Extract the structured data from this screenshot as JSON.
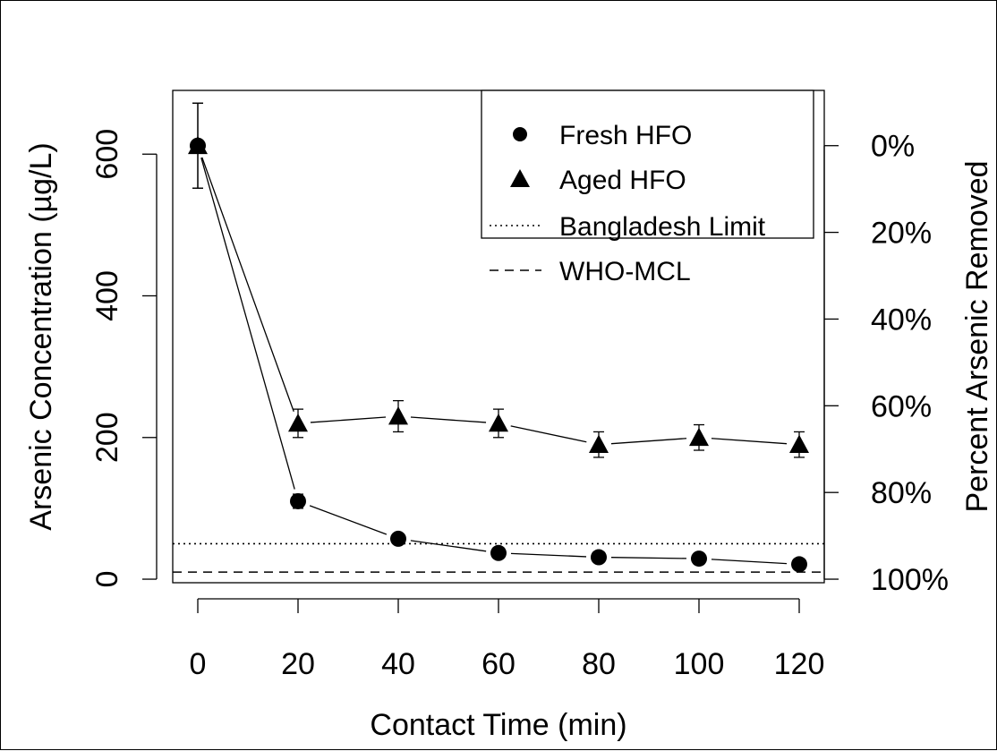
{
  "chart_data": {
    "type": "scatter",
    "xlabel": "Contact Time (min)",
    "ylabel_left": "Arsenic Concentration (µg/L)",
    "ylabel_right": "Percent Arsenic Removed",
    "xlim": [
      -5,
      125
    ],
    "ylim": [
      -5,
      690
    ],
    "x_ticks": [
      0,
      20,
      40,
      60,
      80,
      100,
      120
    ],
    "x_tick_labels": [
      "0",
      "20",
      "40",
      "60",
      "80",
      "100",
      "120"
    ],
    "y_ticks": [
      0,
      200,
      400,
      600
    ],
    "y_tick_labels": [
      "0",
      "200",
      "400",
      "600"
    ],
    "right_axis_initial": 612,
    "right_ticks": [
      0,
      20,
      40,
      60,
      80,
      100
    ],
    "right_tick_labels": [
      "0%",
      "20%",
      "40%",
      "60%",
      "80%",
      "100%"
    ],
    "series": [
      {
        "name": "Fresh HFO",
        "marker": "circle",
        "x": [
          0,
          20,
          40,
          60,
          80,
          100,
          120
        ],
        "y": [
          612,
          110,
          57,
          37,
          31,
          29,
          21
        ],
        "err": [
          60,
          10,
          5,
          4,
          3,
          3,
          3
        ]
      },
      {
        "name": "Aged HFO",
        "marker": "triangle",
        "x": [
          0,
          20,
          40,
          60,
          80,
          100,
          120
        ],
        "y": [
          612,
          220,
          230,
          220,
          190,
          200,
          190
        ],
        "err": [
          60,
          20,
          22,
          20,
          18,
          18,
          18
        ]
      }
    ],
    "reference_lines": [
      {
        "name": "Bangladesh Limit",
        "y": 50,
        "style": "dotted"
      },
      {
        "name": "WHO-MCL",
        "y": 10,
        "style": "dashed"
      }
    ],
    "legend_entries": [
      "Fresh HFO",
      "Aged HFO",
      "Bangladesh Limit",
      "WHO-MCL"
    ],
    "legend_position": "top-right",
    "grid": false
  }
}
